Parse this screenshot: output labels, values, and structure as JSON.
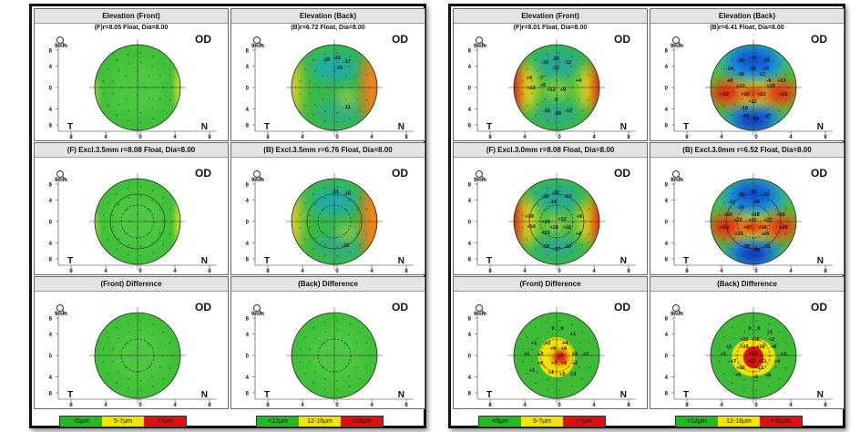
{
  "left": {
    "cells": [
      {
        "title": "Elevation (Front)",
        "subtitle": "(F)r=8.05 Float, Dia=8.00",
        "map": "flat-green",
        "labels": []
      },
      {
        "title": "Elevation (Back)",
        "subtitle": "(B)r=6.72 Float, Dia=8.00",
        "map": "back-mild",
        "labels": [
          {
            "t": "-18",
            "x": -9,
            "y": -31
          },
          {
            "t": "-21",
            "x": 3,
            "y": -33
          },
          {
            "t": "-17",
            "x": 14,
            "y": -29
          },
          {
            "t": "-15",
            "x": 5,
            "y": -22
          },
          {
            "t": "-11",
            "x": 14,
            "y": 21
          }
        ]
      },
      {
        "title": "(F) Excl.3.5mm  r=8.08 Float, Dia=8.00",
        "subtitle": "",
        "map": "flat-green-ring",
        "labels": []
      },
      {
        "title": "(B) Excl.3.5mm  r=6.76 Float, Dia=8.00",
        "subtitle": "",
        "map": "back-mild-ring",
        "labels": [
          {
            "t": "-21",
            "x": 1,
            "y": -33
          },
          {
            "t": "-15",
            "x": 14,
            "y": -31
          },
          {
            "t": "-10",
            "x": 12,
            "y": 26
          }
        ]
      },
      {
        "title": "(Front) Difference",
        "subtitle": "",
        "map": "diff-green",
        "labels": []
      },
      {
        "title": "(Back) Difference",
        "subtitle": "",
        "map": "diff-green",
        "labels": []
      }
    ],
    "legend_front": [
      {
        "label": "<5µm",
        "color": "#22bb22"
      },
      {
        "label": "5-7µm",
        "color": "#f2e600"
      },
      {
        "label": ">7µm",
        "color": "#e01010"
      }
    ],
    "legend_back": [
      {
        "label": "<12µm",
        "color": "#22bb22"
      },
      {
        "label": "12-16µm",
        "color": "#f2e600"
      },
      {
        "label": ">16µm",
        "color": "#e01010"
      }
    ]
  },
  "right": {
    "cells": [
      {
        "title": "Elevation (Front)",
        "subtitle": "(F)r=8.01 Float, Dia=8.00",
        "map": "front-strong",
        "labels": [
          {
            "t": "-16",
            "x": -13,
            "y": -28
          },
          {
            "t": "-22",
            "x": -1,
            "y": -32
          },
          {
            "t": "-13",
            "x": 12,
            "y": -28
          },
          {
            "t": "-12",
            "x": -1,
            "y": -22
          },
          {
            "t": "+9",
            "x": -30,
            "y": -11
          },
          {
            "t": "-7",
            "x": -17,
            "y": -11
          },
          {
            "t": "+4",
            "x": 24,
            "y": -8
          },
          {
            "t": "+12",
            "x": -28,
            "y": 0
          },
          {
            "t": "+12",
            "x": -6,
            "y": 2
          },
          {
            "t": "+9",
            "x": 7,
            "y": 2
          },
          {
            "t": "+5",
            "x": -15,
            "y": -3
          },
          {
            "t": "-2",
            "x": -1,
            "y": 13
          },
          {
            "t": "-15",
            "x": -11,
            "y": 25
          },
          {
            "t": "-20",
            "x": 1,
            "y": 28
          },
          {
            "t": "-12",
            "x": 13,
            "y": 25
          }
        ]
      },
      {
        "title": "Elevation (Back)",
        "subtitle": "(B)r=6.41 Float, Dia=8.00",
        "map": "back-strong",
        "labels": [
          {
            "t": "-30",
            "x": -14,
            "y": -30
          },
          {
            "t": "-41",
            "x": 0,
            "y": -33
          },
          {
            "t": "-32",
            "x": 14,
            "y": -30
          },
          {
            "t": "-14",
            "x": -26,
            "y": -21
          },
          {
            "t": "-36",
            "x": -1,
            "y": -21
          },
          {
            "t": "-15",
            "x": 13,
            "y": -21
          },
          {
            "t": "-34",
            "x": -14,
            "y": -15
          },
          {
            "t": "-17",
            "x": 9,
            "y": -15
          },
          {
            "t": "+8",
            "x": -26,
            "y": -8
          },
          {
            "t": "-6",
            "x": 17,
            "y": -8
          },
          {
            "t": "+13",
            "x": 31,
            "y": -8
          },
          {
            "t": "+12",
            "x": -14,
            "y": -2
          },
          {
            "t": "+15",
            "x": 19,
            "y": -2
          },
          {
            "t": "+32",
            "x": -32,
            "y": 7
          },
          {
            "t": "+30",
            "x": -9,
            "y": 7
          },
          {
            "t": "+21",
            "x": 9,
            "y": 7
          },
          {
            "t": "+21",
            "x": 33,
            "y": 7
          },
          {
            "t": "+12",
            "x": -1,
            "y": 15
          },
          {
            "t": "-18",
            "x": -10,
            "y": 22
          },
          {
            "t": "-43",
            "x": -9,
            "y": 31
          },
          {
            "t": "-60",
            "x": 2,
            "y": 34
          },
          {
            "t": "-37",
            "x": 15,
            "y": 31
          }
        ]
      },
      {
        "title": "(F) Excl.3.0mm  r=8.08 Float, Dia=8.00",
        "subtitle": "",
        "map": "front-strong-ring",
        "labels": [
          {
            "t": "-16",
            "x": -13,
            "y": -28
          },
          {
            "t": "-22",
            "x": -1,
            "y": -32
          },
          {
            "t": "-13",
            "x": 12,
            "y": -28
          },
          {
            "t": "-14",
            "x": -4,
            "y": -22
          },
          {
            "t": "+10",
            "x": -30,
            "y": -6
          },
          {
            "t": "+10",
            "x": -12,
            "y": 0
          },
          {
            "t": "+12",
            "x": 6,
            "y": -3
          },
          {
            "t": "+5",
            "x": 25,
            "y": -6
          },
          {
            "t": "+14",
            "x": -28,
            "y": 5
          },
          {
            "t": "+19",
            "x": -3,
            "y": 6
          },
          {
            "t": "+16",
            "x": 11,
            "y": 6
          },
          {
            "t": "+13",
            "x": -12,
            "y": 12
          },
          {
            "t": "+2",
            "x": 24,
            "y": 13
          },
          {
            "t": "-12",
            "x": -12,
            "y": 27
          },
          {
            "t": "-17",
            "x": 0,
            "y": 30
          },
          {
            "t": "-10",
            "x": 12,
            "y": 27
          }
        ]
      },
      {
        "title": "(B) Excl.3.0mm  r=6.52 Float, Dia=8.00",
        "subtitle": "",
        "map": "back-strong-ring",
        "labels": [
          {
            "t": "-30",
            "x": -14,
            "y": -30
          },
          {
            "t": "-41",
            "x": 0,
            "y": -33
          },
          {
            "t": "-31",
            "x": 14,
            "y": -30
          },
          {
            "t": "-13",
            "x": -24,
            "y": -22
          },
          {
            "t": "-36",
            "x": 3,
            "y": -22
          },
          {
            "t": "-24",
            "x": -14,
            "y": -16
          },
          {
            "t": "+10",
            "x": -28,
            "y": -8
          },
          {
            "t": "+18",
            "x": 2,
            "y": -8
          },
          {
            "t": "+16",
            "x": 30,
            "y": -8
          },
          {
            "t": "+23",
            "x": -17,
            "y": -2
          },
          {
            "t": "+33",
            "x": -1,
            "y": -2
          },
          {
            "t": "+27",
            "x": 16,
            "y": -2
          },
          {
            "t": "+35",
            "x": -32,
            "y": 6
          },
          {
            "t": "+47",
            "x": -6,
            "y": 6
          },
          {
            "t": "+38",
            "x": 10,
            "y": 6
          },
          {
            "t": "+26",
            "x": 33,
            "y": 6
          },
          {
            "t": "+31",
            "x": -16,
            "y": 13
          },
          {
            "t": "+16",
            "x": 13,
            "y": 13
          },
          {
            "t": "-38",
            "x": -8,
            "y": 27
          },
          {
            "t": "-54",
            "x": 3,
            "y": 31
          },
          {
            "t": "-31",
            "x": 15,
            "y": 27
          }
        ]
      },
      {
        "title": "(Front) Difference",
        "subtitle": "",
        "map": "diff-front-strong",
        "labels": [
          {
            "t": "0",
            "x": -4,
            "y": -30
          },
          {
            "t": "0",
            "x": 6,
            "y": -30
          },
          {
            "t": "+1",
            "x": 18,
            "y": -24
          },
          {
            "t": "+1",
            "x": -25,
            "y": -14
          },
          {
            "t": "+2",
            "x": -10,
            "y": -14
          },
          {
            "t": "+4",
            "x": 9,
            "y": -14
          },
          {
            "t": "+6",
            "x": -4,
            "y": -8
          },
          {
            "t": "+6",
            "x": 8,
            "y": -8
          },
          {
            "t": "+1",
            "x": -33,
            "y": -2
          },
          {
            "t": "+3",
            "x": -18,
            "y": -2
          },
          {
            "t": "+7",
            "x": 4,
            "y": 0
          },
          {
            "t": "+5",
            "x": 20,
            "y": -2
          },
          {
            "t": "+2",
            "x": 32,
            "y": -2
          },
          {
            "t": "+5",
            "x": -18,
            "y": 8
          },
          {
            "t": "+7",
            "x": -3,
            "y": 8
          },
          {
            "t": "+5",
            "x": 8,
            "y": 8
          },
          {
            "t": "+2",
            "x": 20,
            "y": 8
          },
          {
            "t": "+1",
            "x": -27,
            "y": 16
          },
          {
            "t": "+2",
            "x": -6,
            "y": 18
          },
          {
            "t": "+3",
            "x": 6,
            "y": 20
          },
          {
            "t": "+3",
            "x": 18,
            "y": 20
          }
        ]
      },
      {
        "title": "(Back) Difference",
        "subtitle": "",
        "map": "diff-back-strong",
        "labels": [
          {
            "t": "0",
            "x": -4,
            "y": -30
          },
          {
            "t": "0",
            "x": 6,
            "y": -30
          },
          {
            "t": "+1",
            "x": 18,
            "y": -26
          },
          {
            "t": "+10",
            "x": -10,
            "y": -18
          },
          {
            "t": "+16",
            "x": 2,
            "y": -18
          },
          {
            "t": "+2",
            "x": 20,
            "y": -18
          },
          {
            "t": "+2",
            "x": -27,
            "y": -10
          },
          {
            "t": "+16",
            "x": -10,
            "y": -10
          },
          {
            "t": "+16",
            "x": 8,
            "y": -10
          },
          {
            "t": "+6",
            "x": 22,
            "y": -10
          },
          {
            "t": "+1",
            "x": -33,
            "y": -2
          },
          {
            "t": "+18",
            "x": 0,
            "y": -2
          },
          {
            "t": "+2",
            "x": 33,
            "y": -2
          },
          {
            "t": "+7",
            "x": -22,
            "y": 6
          },
          {
            "t": "+17",
            "x": -2,
            "y": 6
          },
          {
            "t": "+11",
            "x": 10,
            "y": 6
          },
          {
            "t": "+4",
            "x": 26,
            "y": 6
          },
          {
            "t": "+12",
            "x": -14,
            "y": 13
          },
          {
            "t": "+13",
            "x": 6,
            "y": 13
          },
          {
            "t": "+5",
            "x": -17,
            "y": 21
          },
          {
            "t": "+6",
            "x": 2,
            "y": 23
          },
          {
            "t": "+5",
            "x": 16,
            "y": 21
          }
        ]
      }
    ],
    "legend_front": [
      {
        "label": "<5µm",
        "color": "#22bb22"
      },
      {
        "label": "5-7µm",
        "color": "#f2e600"
      },
      {
        "label": ">7µm",
        "color": "#e01010"
      }
    ],
    "legend_back": [
      {
        "label": "<12µm",
        "color": "#22bb22"
      },
      {
        "label": "12-16µm",
        "color": "#f2e600"
      },
      {
        "label": ">16µm",
        "color": "#e01010"
      }
    ]
  },
  "common": {
    "od": "OD",
    "mag_label": "9mm",
    "t_label": "T",
    "n_label": "N",
    "x_ticks": [
      "8",
      "4",
      "0",
      "4",
      "8"
    ],
    "y_ticks": [
      "8",
      "4",
      "0",
      "4",
      "8"
    ]
  }
}
